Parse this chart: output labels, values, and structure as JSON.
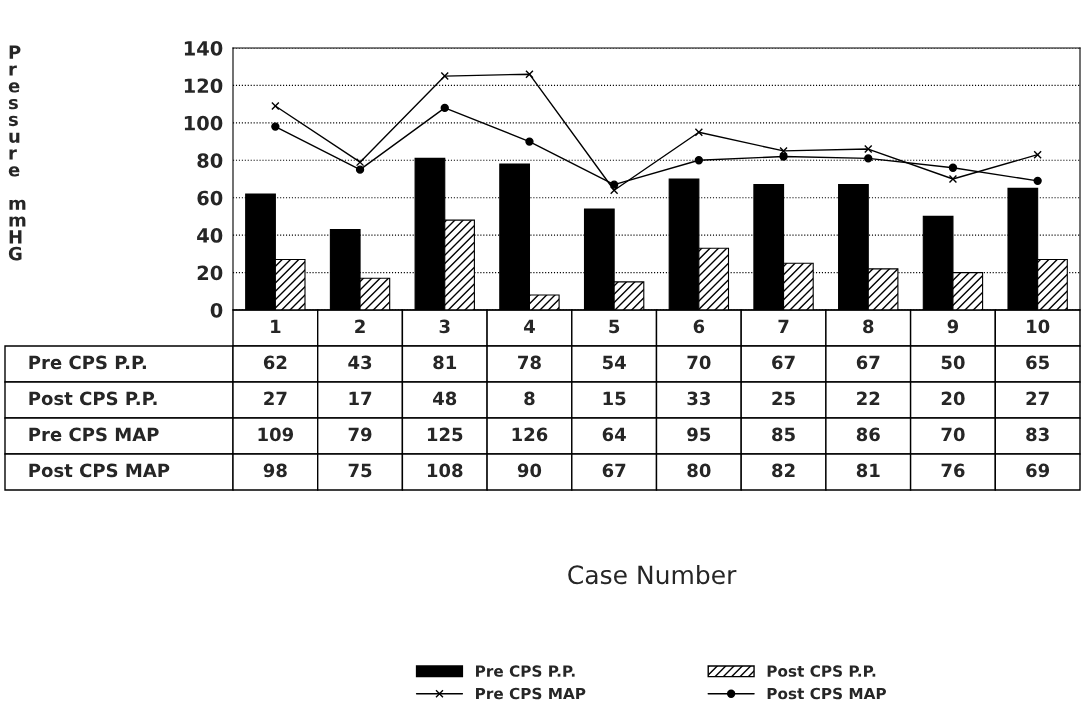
{
  "chart_data": {
    "type": "bar",
    "annotations": [
      "Case Number"
    ],
    "ylabel": "Pressure mmHG",
    "categories": [
      "1",
      "2",
      "3",
      "4",
      "5",
      "6",
      "7",
      "8",
      "9",
      "10"
    ],
    "series": [
      {
        "name": "Pre CPS P.P.",
        "color": "#000000",
        "values": [
          62,
          43,
          81,
          78,
          54,
          70,
          67,
          67,
          50,
          65
        ]
      },
      {
        "name": "Post CPS P.P.",
        "color": "#000000",
        "values": [
          27,
          17,
          48,
          8,
          15,
          33,
          25,
          22,
          20,
          27
        ]
      },
      {
        "name": "Pre CPS MAP",
        "type": "line",
        "marker": "cross",
        "color": "#000000",
        "values": [
          109,
          79,
          125,
          126,
          64,
          95,
          85,
          86,
          70,
          83
        ]
      },
      {
        "name": "Post CPS MAP",
        "type": "line",
        "marker": "circle",
        "color": "#000000",
        "values": [
          98,
          75,
          108,
          90,
          67,
          80,
          82,
          81,
          76,
          69
        ]
      }
    ],
    "ylim": [
      0,
      140
    ],
    "yticks": [
      0,
      20,
      40,
      60,
      80,
      100,
      120,
      140
    ],
    "grid": "y",
    "data_labels": true,
    "legend": "bottom"
  }
}
